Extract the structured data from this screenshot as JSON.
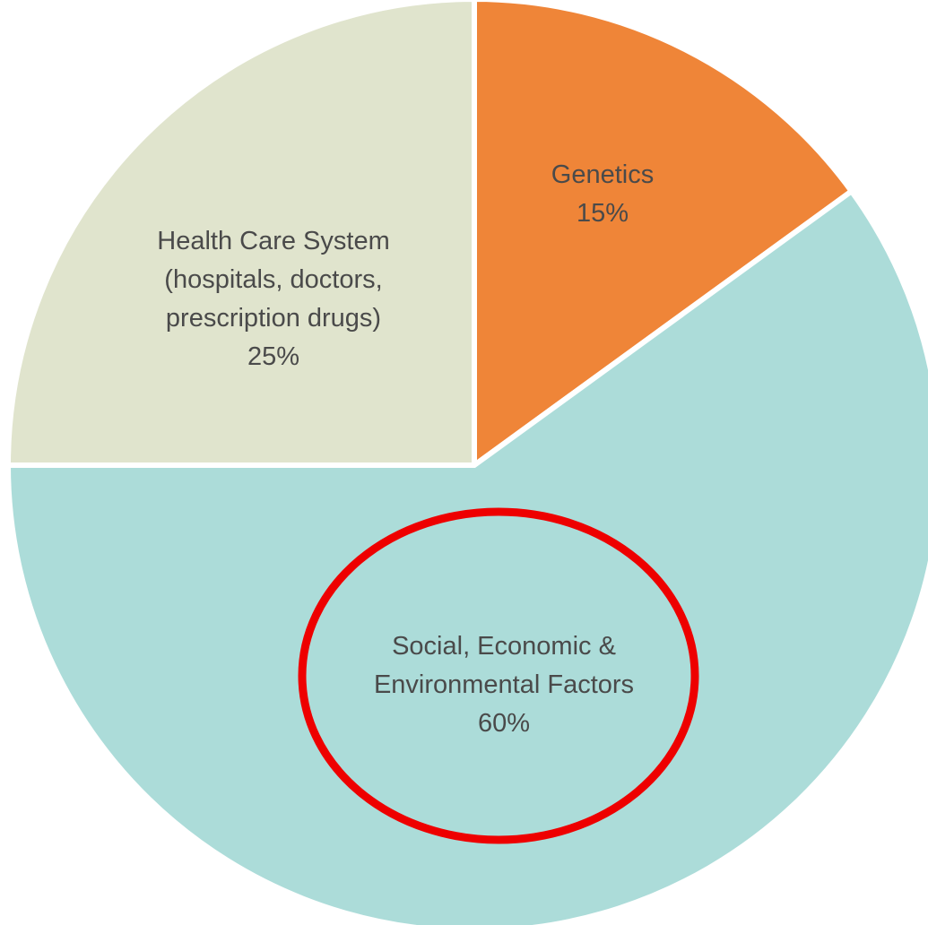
{
  "chart_data": {
    "type": "pie",
    "title": "",
    "slices": [
      {
        "name": "Genetics",
        "lines": [
          "Genetics",
          "15%"
        ],
        "value": 15,
        "color": "#ef8538"
      },
      {
        "name": "Social, Economic & Environmental Factors",
        "lines": [
          "Social, Economic &",
          "Environmental Factors",
          "60%"
        ],
        "value": 60,
        "color": "#acdcd9"
      },
      {
        "name": "Health Care System",
        "lines": [
          "Health Care System",
          "(hospitals, doctors,",
          "prescription drugs)",
          "25%"
        ],
        "value": 25,
        "color": "#e0e4cd"
      }
    ],
    "start_angle_deg": 0,
    "direction": "clockwise",
    "slice_separator_color": "#ffffff",
    "annotation": {
      "shape": "ellipse",
      "color": "#ee0000",
      "target_slice": "Social, Economic & Environmental Factors"
    }
  }
}
